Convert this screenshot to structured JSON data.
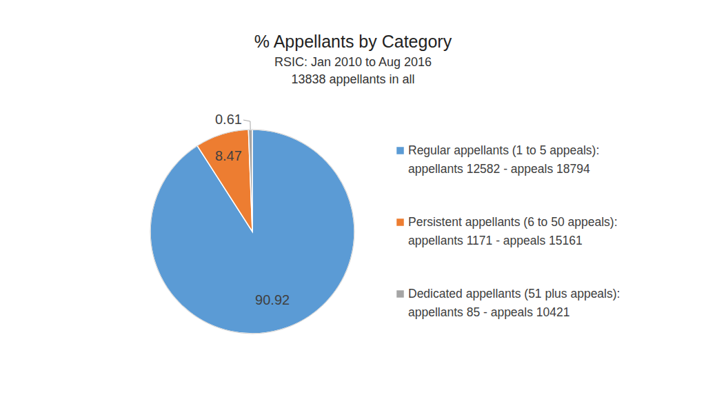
{
  "chart_data": {
    "type": "pie",
    "title": "% Appellants by Category",
    "subtitle": [
      "RSIC: Jan 2010 to Aug 2016",
      "13838 appellants in all"
    ],
    "categories": [
      "Regular appellants (1 to 5 appeals):\nappellants 12582 - appeals 18794",
      "Persistent appellants (6 to 50 appeals):\nappellants 1171 - appeals 15161",
      "Dedicated appellants (51 plus appeals):\nappellants 85 - appeals 10421"
    ],
    "values": [
      90.92,
      8.47,
      0.61
    ],
    "colors": [
      "#5b9bd5",
      "#ed7d31",
      "#a5a5a5"
    ],
    "data_labels": true,
    "legend": "right"
  }
}
